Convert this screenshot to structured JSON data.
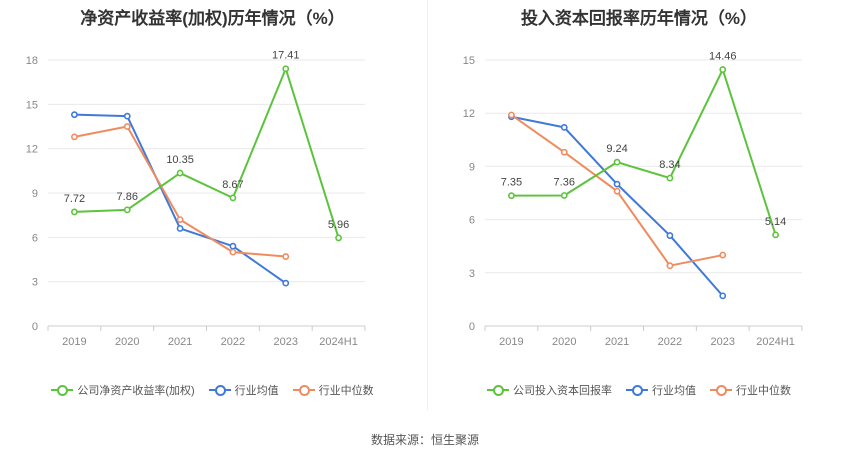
{
  "source_label": "数据来源：恒生聚源",
  "chart_data": [
    {
      "type": "line",
      "title": "净资产收益率(加权)历年情况（%）",
      "categories": [
        "2019",
        "2020",
        "2021",
        "2022",
        "2023",
        "2024H1"
      ],
      "ylim": [
        0,
        18
      ],
      "yticks": [
        0,
        3,
        6,
        9,
        12,
        15,
        18
      ],
      "grid": true,
      "legend_position": "bottom",
      "series": [
        {
          "name": "公司净资产收益率(加权)",
          "color": "#5cc33c",
          "values": [
            7.72,
            7.86,
            10.35,
            8.67,
            17.41,
            5.96
          ],
          "labels": [
            "7.72",
            "7.86",
            "10.35",
            "8.67",
            "17.41",
            "5.96"
          ]
        },
        {
          "name": "行业均值",
          "color": "#3f79d9",
          "values": [
            14.3,
            14.2,
            6.6,
            5.4,
            2.9,
            null
          ]
        },
        {
          "name": "行业中位数",
          "color": "#ef8b5f",
          "values": [
            12.8,
            13.5,
            7.2,
            5.0,
            4.7,
            null
          ]
        }
      ]
    },
    {
      "type": "line",
      "title": "投入资本回报率历年情况（%）",
      "categories": [
        "2019",
        "2020",
        "2021",
        "2022",
        "2023",
        "2024H1"
      ],
      "ylim": [
        0,
        15
      ],
      "yticks": [
        0,
        3,
        6,
        9,
        12,
        15
      ],
      "grid": true,
      "legend_position": "bottom",
      "series": [
        {
          "name": "公司投入资本回报率",
          "color": "#5cc33c",
          "values": [
            7.35,
            7.36,
            9.24,
            8.34,
            14.46,
            5.14
          ],
          "labels": [
            "7.35",
            "7.36",
            "9.24",
            "8.34",
            "14.46",
            "5.14"
          ]
        },
        {
          "name": "行业均值",
          "color": "#3f79d9",
          "values": [
            11.8,
            11.2,
            8.0,
            5.1,
            1.7,
            null
          ]
        },
        {
          "name": "行业中位数",
          "color": "#ef8b5f",
          "values": [
            11.9,
            9.8,
            7.6,
            3.4,
            4.0,
            null
          ]
        }
      ]
    }
  ]
}
